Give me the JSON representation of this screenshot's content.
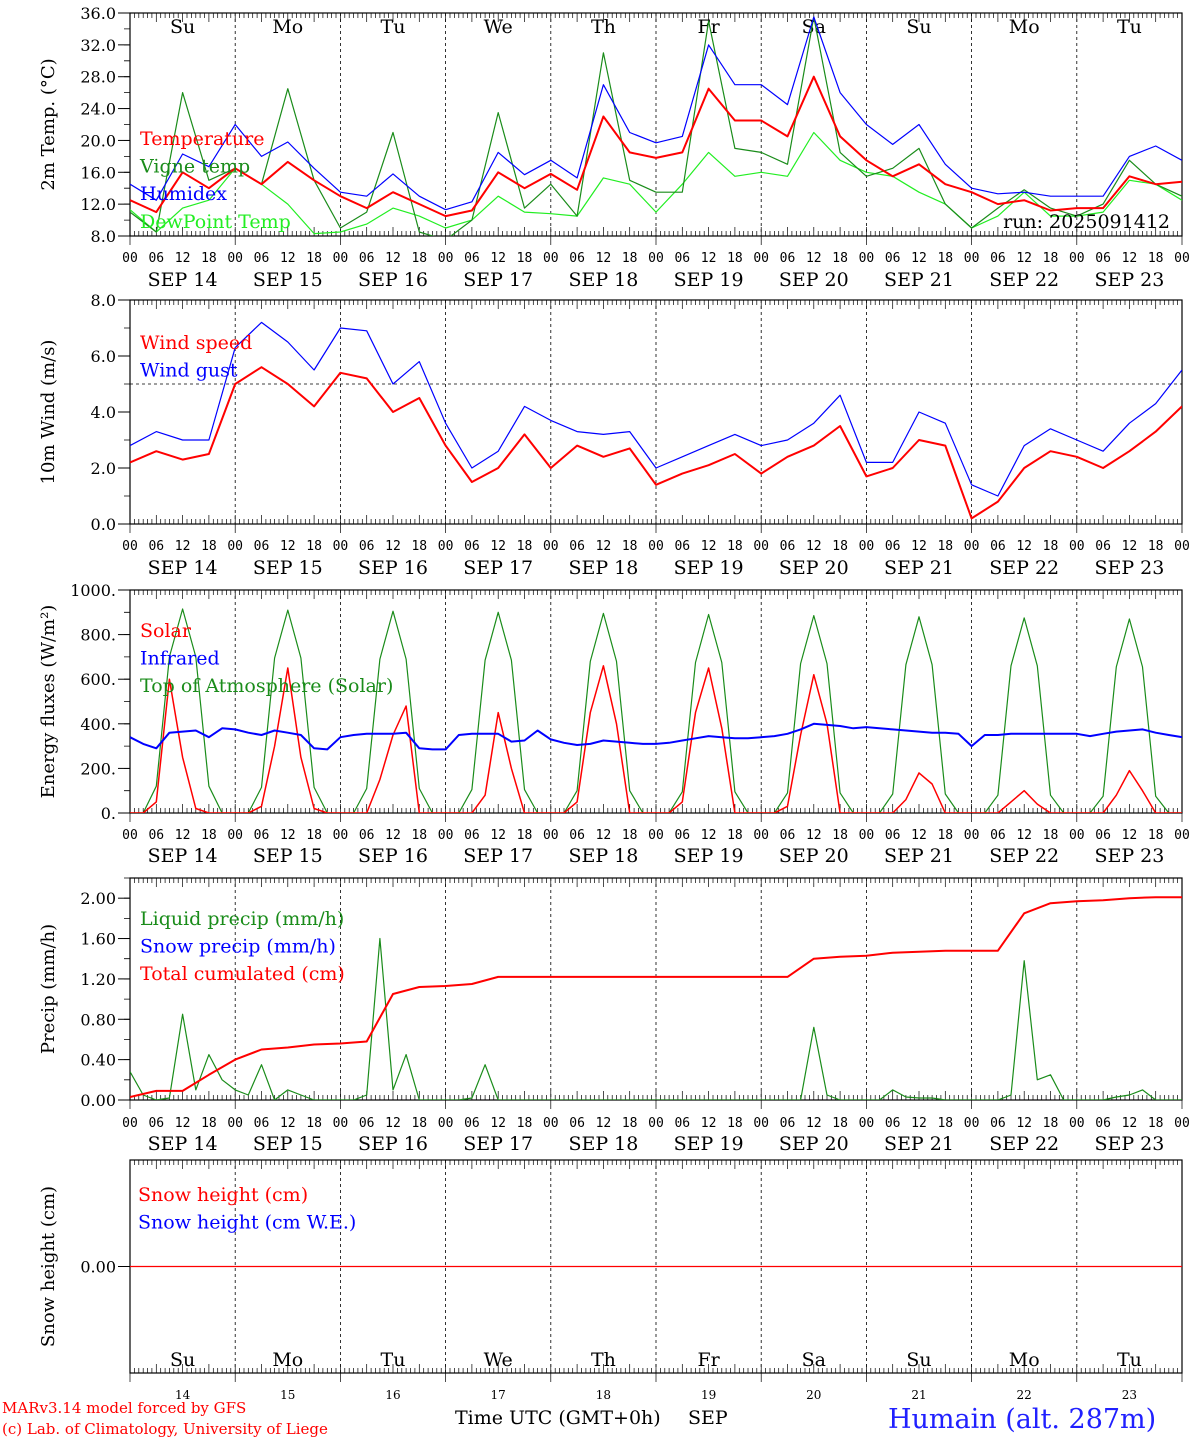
{
  "chart_data": [
    {
      "type": "line",
      "ylabel": "2m Temp. (°C)",
      "ylim": [
        8,
        36
      ],
      "yticks": [
        "8.0",
        "12.0",
        "16.0",
        "20.0",
        "24.0",
        "28.0",
        "32.0",
        "36.0"
      ],
      "x_step_hours": 6,
      "annotation": "run: 2025091412",
      "series": [
        {
          "name": "Temperature",
          "color": "#ff0000",
          "width": 2,
          "values": [
            12.5,
            11.0,
            16.0,
            14.0,
            16.5,
            14.5,
            17.3,
            15.0,
            13.0,
            11.5,
            13.5,
            12.0,
            10.5,
            11.2,
            16.0,
            14.0,
            15.8,
            13.8,
            23.0,
            18.5,
            17.8,
            18.5,
            26.5,
            22.5,
            22.5,
            20.5,
            28.0,
            20.5,
            17.5,
            15.5,
            17.0,
            14.5,
            13.5,
            12.0,
            12.5,
            11.2,
            11.5,
            11.5,
            15.5,
            14.5,
            14.8
          ]
        },
        {
          "name": "Vigne temp",
          "color": "#1a8c1a",
          "width": 1.2,
          "values": [
            11.0,
            8.5,
            26.0,
            15.0,
            16.5,
            14.5,
            26.5,
            15.0,
            9.0,
            11.0,
            21.0,
            8.5,
            7.5,
            10.0,
            23.5,
            11.5,
            14.5,
            10.5,
            31.0,
            15.0,
            13.5,
            13.5,
            35.0,
            19.0,
            18.5,
            17.0,
            35.5,
            18.5,
            15.5,
            16.5,
            19.0,
            12.0,
            9.0,
            11.5,
            13.8,
            11.5,
            10.5,
            12.0,
            17.5,
            14.5,
            13.0
          ]
        },
        {
          "name": "Humidex",
          "color": "#0000ff",
          "width": 1.2,
          "values": [
            14.5,
            12.5,
            18.3,
            16.7,
            22.0,
            18.0,
            19.8,
            16.5,
            13.5,
            13.0,
            15.8,
            13.0,
            11.3,
            12.3,
            18.5,
            15.7,
            17.5,
            15.3,
            27.0,
            21.0,
            19.7,
            20.5,
            32.0,
            27.0,
            27.0,
            24.5,
            35.5,
            26.0,
            22.0,
            19.5,
            22.0,
            17.0,
            14.0,
            13.3,
            13.5,
            13.0,
            13.0,
            13.0,
            18.0,
            19.3,
            17.5
          ]
        },
        {
          "name": "DewPoint Temp",
          "color": "#22ee22",
          "width": 1.2,
          "values": [
            11.3,
            8.5,
            11.5,
            12.5,
            16.5,
            14.5,
            12.0,
            8.3,
            8.5,
            9.5,
            11.5,
            10.5,
            9.0,
            10.0,
            13.0,
            11.0,
            10.8,
            10.5,
            15.3,
            14.5,
            11.0,
            14.5,
            18.5,
            15.5,
            16.0,
            15.5,
            21.0,
            17.5,
            16.0,
            15.5,
            13.5,
            12.0,
            9.0,
            10.5,
            13.5,
            10.5,
            10.5,
            11.0,
            15.0,
            14.5,
            12.5
          ]
        }
      ]
    },
    {
      "type": "line",
      "ylabel": "10m Wind (m/s)",
      "ylim": [
        0,
        8
      ],
      "yticks": [
        "0.0",
        "2.0",
        "4.0",
        "6.0",
        "8.0"
      ],
      "reference_line": 5,
      "x_step_hours": 6,
      "series": [
        {
          "name": "Wind speed",
          "color": "#ff0000",
          "width": 2,
          "values": [
            2.2,
            2.6,
            2.3,
            2.5,
            5.0,
            5.6,
            5.0,
            4.2,
            5.4,
            5.2,
            4.0,
            4.5,
            2.8,
            1.5,
            2.0,
            3.2,
            2.0,
            2.8,
            2.4,
            2.7,
            1.4,
            1.8,
            2.1,
            2.5,
            1.8,
            2.4,
            2.8,
            3.5,
            1.7,
            2.0,
            3.0,
            2.8,
            0.2,
            0.8,
            2.0,
            2.6,
            2.4,
            2.0,
            2.6,
            3.3,
            4.2
          ]
        },
        {
          "name": "Wind gust",
          "color": "#0000ff",
          "width": 1.2,
          "values": [
            2.8,
            3.3,
            3.0,
            3.0,
            6.3,
            7.2,
            6.5,
            5.5,
            7.0,
            6.9,
            5.0,
            5.8,
            3.6,
            2.0,
            2.6,
            4.2,
            3.7,
            3.3,
            3.2,
            3.3,
            2.0,
            2.4,
            2.8,
            3.2,
            2.8,
            3.0,
            3.6,
            4.6,
            2.2,
            2.2,
            4.0,
            3.6,
            1.4,
            1.0,
            2.8,
            3.4,
            3.0,
            2.6,
            3.6,
            4.3,
            5.5
          ]
        }
      ]
    },
    {
      "type": "line",
      "ylabel": "Energy fluxes (W/m²)",
      "ylim": [
        0,
        1000
      ],
      "yticks": [
        "0.",
        "200.",
        "400.",
        "600.",
        "800.",
        "1000."
      ],
      "x_step_hours": 3,
      "series": [
        {
          "name": "Solar",
          "color": "#ff0000",
          "width": 1.5,
          "values": [
            0,
            0,
            50,
            600,
            250,
            20,
            0,
            0,
            0,
            0,
            30,
            300,
            650,
            250,
            20,
            0,
            0,
            0,
            0,
            150,
            350,
            480,
            0,
            0,
            0,
            0,
            0,
            80,
            450,
            200,
            0,
            0,
            0,
            0,
            50,
            450,
            660,
            400,
            0,
            0,
            0,
            0,
            50,
            450,
            650,
            380,
            0,
            0,
            0,
            0,
            30,
            350,
            620,
            400,
            0,
            0,
            0,
            0,
            0,
            60,
            180,
            130,
            0,
            0,
            0,
            0,
            0,
            50,
            100,
            40,
            0,
            0,
            0,
            0,
            0,
            80,
            190,
            100,
            0,
            0,
            0
          ]
        },
        {
          "name": "Infrared",
          "color": "#0000ff",
          "width": 2,
          "values": [
            340,
            310,
            290,
            360,
            365,
            370,
            340,
            380,
            375,
            360,
            350,
            370,
            360,
            350,
            290,
            285,
            340,
            350,
            355,
            355,
            355,
            360,
            290,
            285,
            285,
            350,
            355,
            355,
            355,
            320,
            325,
            370,
            330,
            315,
            305,
            310,
            325,
            320,
            315,
            310,
            310,
            315,
            325,
            335,
            345,
            340,
            335,
            335,
            340,
            345,
            355,
            375,
            400,
            395,
            390,
            380,
            385,
            380,
            375,
            370,
            365,
            360,
            360,
            355,
            300,
            350,
            350,
            355,
            355,
            355,
            355,
            355,
            355,
            345,
            355,
            365,
            370,
            375,
            360,
            350,
            340
          ]
        },
        {
          "name": "Top of Atmosphere (Solar)",
          "color": "#1a8c1a",
          "width": 1.2,
          "values": [
            0,
            0,
            120,
            700,
            915,
            700,
            120,
            0,
            0,
            0,
            115,
            695,
            910,
            695,
            115,
            0,
            0,
            0,
            110,
            690,
            905,
            690,
            110,
            0,
            0,
            0,
            105,
            685,
            900,
            685,
            105,
            0,
            0,
            0,
            100,
            680,
            895,
            680,
            100,
            0,
            0,
            0,
            95,
            675,
            890,
            675,
            95,
            0,
            0,
            0,
            90,
            670,
            885,
            670,
            90,
            0,
            0,
            0,
            85,
            665,
            880,
            665,
            85,
            0,
            0,
            0,
            80,
            660,
            875,
            660,
            80,
            0,
            0,
            0,
            75,
            655,
            870,
            655,
            75,
            0,
            0
          ]
        }
      ]
    },
    {
      "type": "line",
      "ylabel": "Precip (mm/h)",
      "ylim": [
        0,
        2.2
      ],
      "yticks": [
        "0.00",
        "0.40",
        "0.80",
        "1.20",
        "1.60",
        "2.00"
      ],
      "series": [
        {
          "name": "Liquid precip (mm/h)",
          "color": "#1a8c1a",
          "width": 1.2,
          "x_step_hours": 3,
          "values": [
            0.28,
            0.05,
            0,
            0.02,
            0.85,
            0.1,
            0.45,
            0.2,
            0.1,
            0.05,
            0.35,
            0,
            0.1,
            0.05,
            0,
            0,
            0,
            0,
            0.05,
            1.6,
            0.1,
            0.45,
            0,
            0,
            0,
            0,
            0.02,
            0.35,
            0,
            0,
            0,
            0,
            0,
            0,
            0,
            0,
            0,
            0,
            0,
            0,
            0,
            0,
            0,
            0,
            0,
            0,
            0,
            0,
            0,
            0,
            0,
            0,
            0.72,
            0.05,
            0,
            0,
            0,
            0,
            0.1,
            0.03,
            0.02,
            0.02,
            0,
            0,
            0,
            0,
            0,
            0.05,
            1.38,
            0.2,
            0.25,
            0,
            0,
            0,
            0,
            0.03,
            0.05,
            0.1,
            0,
            0,
            0
          ]
        },
        {
          "name": "Snow precip (mm/h)",
          "color": "#0000ff",
          "width": 1.2,
          "x_step_hours": 3,
          "values": []
        },
        {
          "name": "Total cumulated (cm)",
          "color": "#ff0000",
          "width": 2,
          "x_step_hours": 6,
          "values": [
            0.03,
            0.09,
            0.09,
            0.25,
            0.4,
            0.5,
            0.52,
            0.55,
            0.56,
            0.58,
            1.05,
            1.12,
            1.13,
            1.15,
            1.22,
            1.22,
            1.22,
            1.22,
            1.22,
            1.22,
            1.22,
            1.22,
            1.22,
            1.22,
            1.22,
            1.22,
            1.4,
            1.42,
            1.43,
            1.46,
            1.47,
            1.48,
            1.48,
            1.48,
            1.85,
            1.95,
            1.97,
            1.98,
            2.0,
            2.01,
            2.01
          ]
        }
      ]
    },
    {
      "type": "line",
      "ylabel": "Snow height (cm)",
      "ylim": [
        -1,
        1
      ],
      "yticks": [
        "0.00"
      ],
      "x_step_hours": 24,
      "series": [
        {
          "name": "Snow height (cm)",
          "color": "#ff0000",
          "width": 1.2,
          "values": [
            0,
            0,
            0,
            0,
            0,
            0,
            0,
            0,
            0,
            0,
            0
          ]
        },
        {
          "name": "Snow height (cm W.E.)",
          "color": "#0000ff",
          "width": 1.2,
          "values": []
        }
      ]
    }
  ],
  "x_axis": {
    "hour_labels": [
      "00",
      "06",
      "12",
      "18"
    ],
    "dates": [
      "SEP 14",
      "SEP 15",
      "SEP 16",
      "SEP 17",
      "SEP 18",
      "SEP 19",
      "SEP 20",
      "SEP 21",
      "SEP 22",
      "SEP 23"
    ],
    "weekdays": [
      "Su",
      "Mo",
      "Tu",
      "We",
      "Th",
      "Fr",
      "Sa",
      "Su",
      "Mo",
      "Tu"
    ],
    "weekend_color": "#ff0000",
    "day_numbers": [
      "14",
      "15",
      "16",
      "17",
      "18",
      "19",
      "20",
      "21",
      "22",
      "23"
    ],
    "xlabel": "Time UTC (GMT+0h)",
    "month": "SEP"
  },
  "footer": {
    "model": "MARv3.14 model forced by GFS",
    "credit": "(c) Lab. of Climatology, University of Liege",
    "station": "Humain (alt. 287m)"
  }
}
